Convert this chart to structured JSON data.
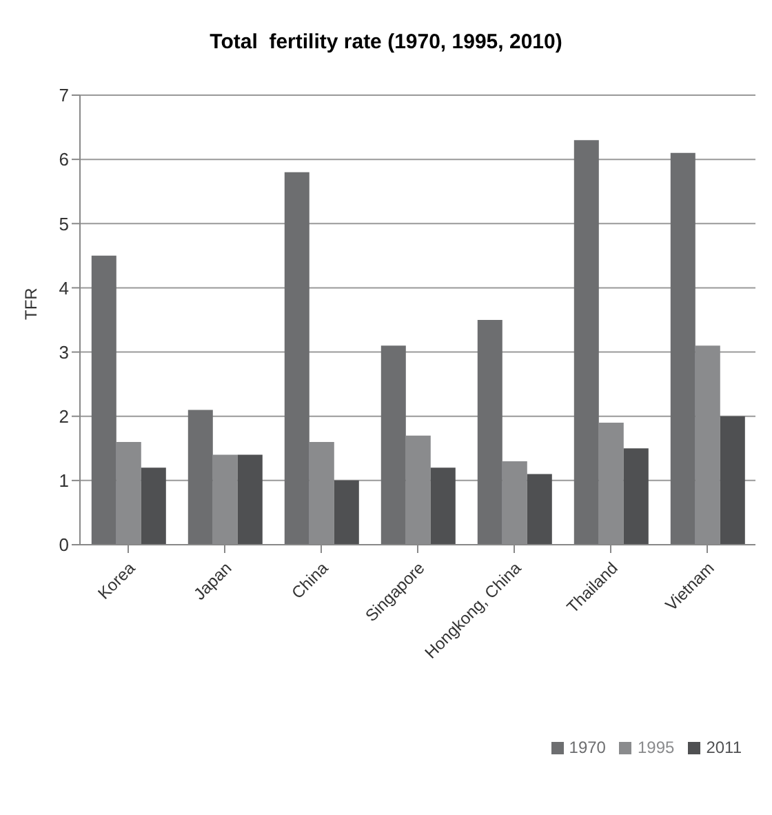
{
  "chart_data": {
    "type": "bar",
    "title": "Total  fertility rate (1970, 1995, 2010)",
    "ylabel": "TFR",
    "categories": [
      "Korea",
      "Japan",
      "China",
      "Singapore",
      "Hongkong, China",
      "Thailand",
      "Vietnam"
    ],
    "series": [
      {
        "name": "1970",
        "color": "#6d6e70",
        "values": [
          4.5,
          2.1,
          5.8,
          3.1,
          3.5,
          6.3,
          6.1
        ]
      },
      {
        "name": "1995",
        "color": "#8a8b8d",
        "values": [
          1.6,
          1.4,
          1.6,
          1.7,
          1.3,
          1.9,
          3.1
        ]
      },
      {
        "name": "2011",
        "color": "#4f5052",
        "values": [
          1.2,
          1.4,
          1.0,
          1.2,
          1.1,
          1.5,
          2.0
        ]
      }
    ],
    "ylim": [
      0,
      7
    ],
    "yticks": [
      0,
      1,
      2,
      3,
      4,
      5,
      6,
      7
    ],
    "grid": "y",
    "legend": "bottom right"
  }
}
